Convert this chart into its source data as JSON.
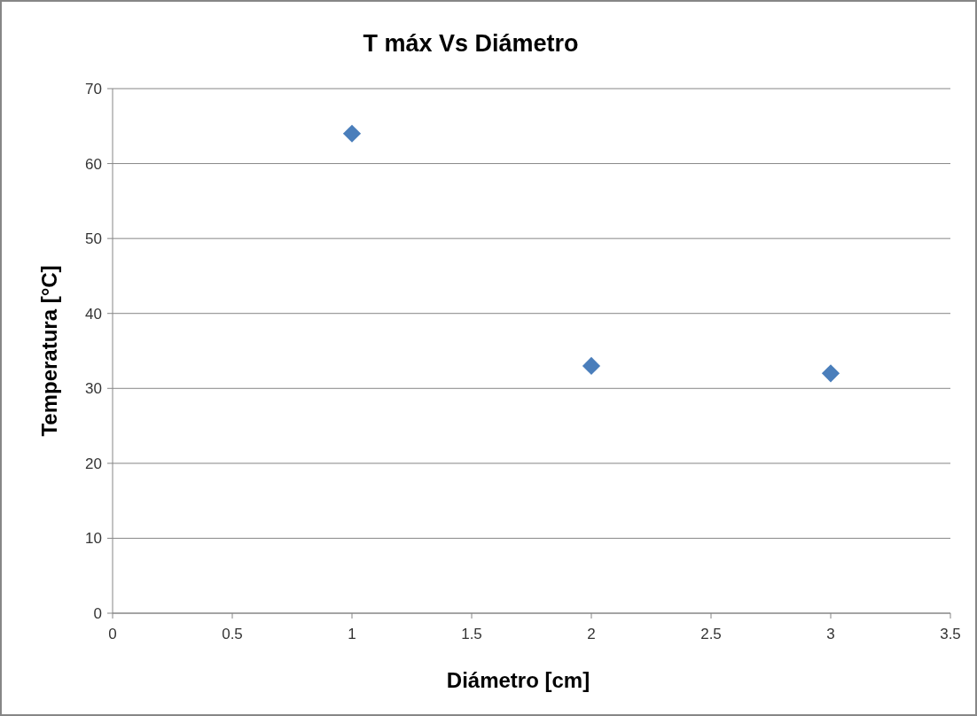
{
  "chart_data": {
    "type": "scatter",
    "title": "T máx Vs Diámetro",
    "xlabel": "Diámetro [cm]",
    "ylabel": "Temperatura [°C]",
    "x": [
      1,
      2,
      3
    ],
    "values": [
      64,
      33,
      32
    ],
    "color": "#4a7ebb",
    "marker": "diamond",
    "xlim": [
      0,
      3.5
    ],
    "xticks": [
      0,
      0.5,
      1,
      1.5,
      2,
      2.5,
      3,
      3.5
    ],
    "ylim": [
      0,
      70
    ],
    "yticks": [
      0,
      10,
      20,
      30,
      40,
      50,
      60,
      70
    ],
    "grid": "y"
  }
}
